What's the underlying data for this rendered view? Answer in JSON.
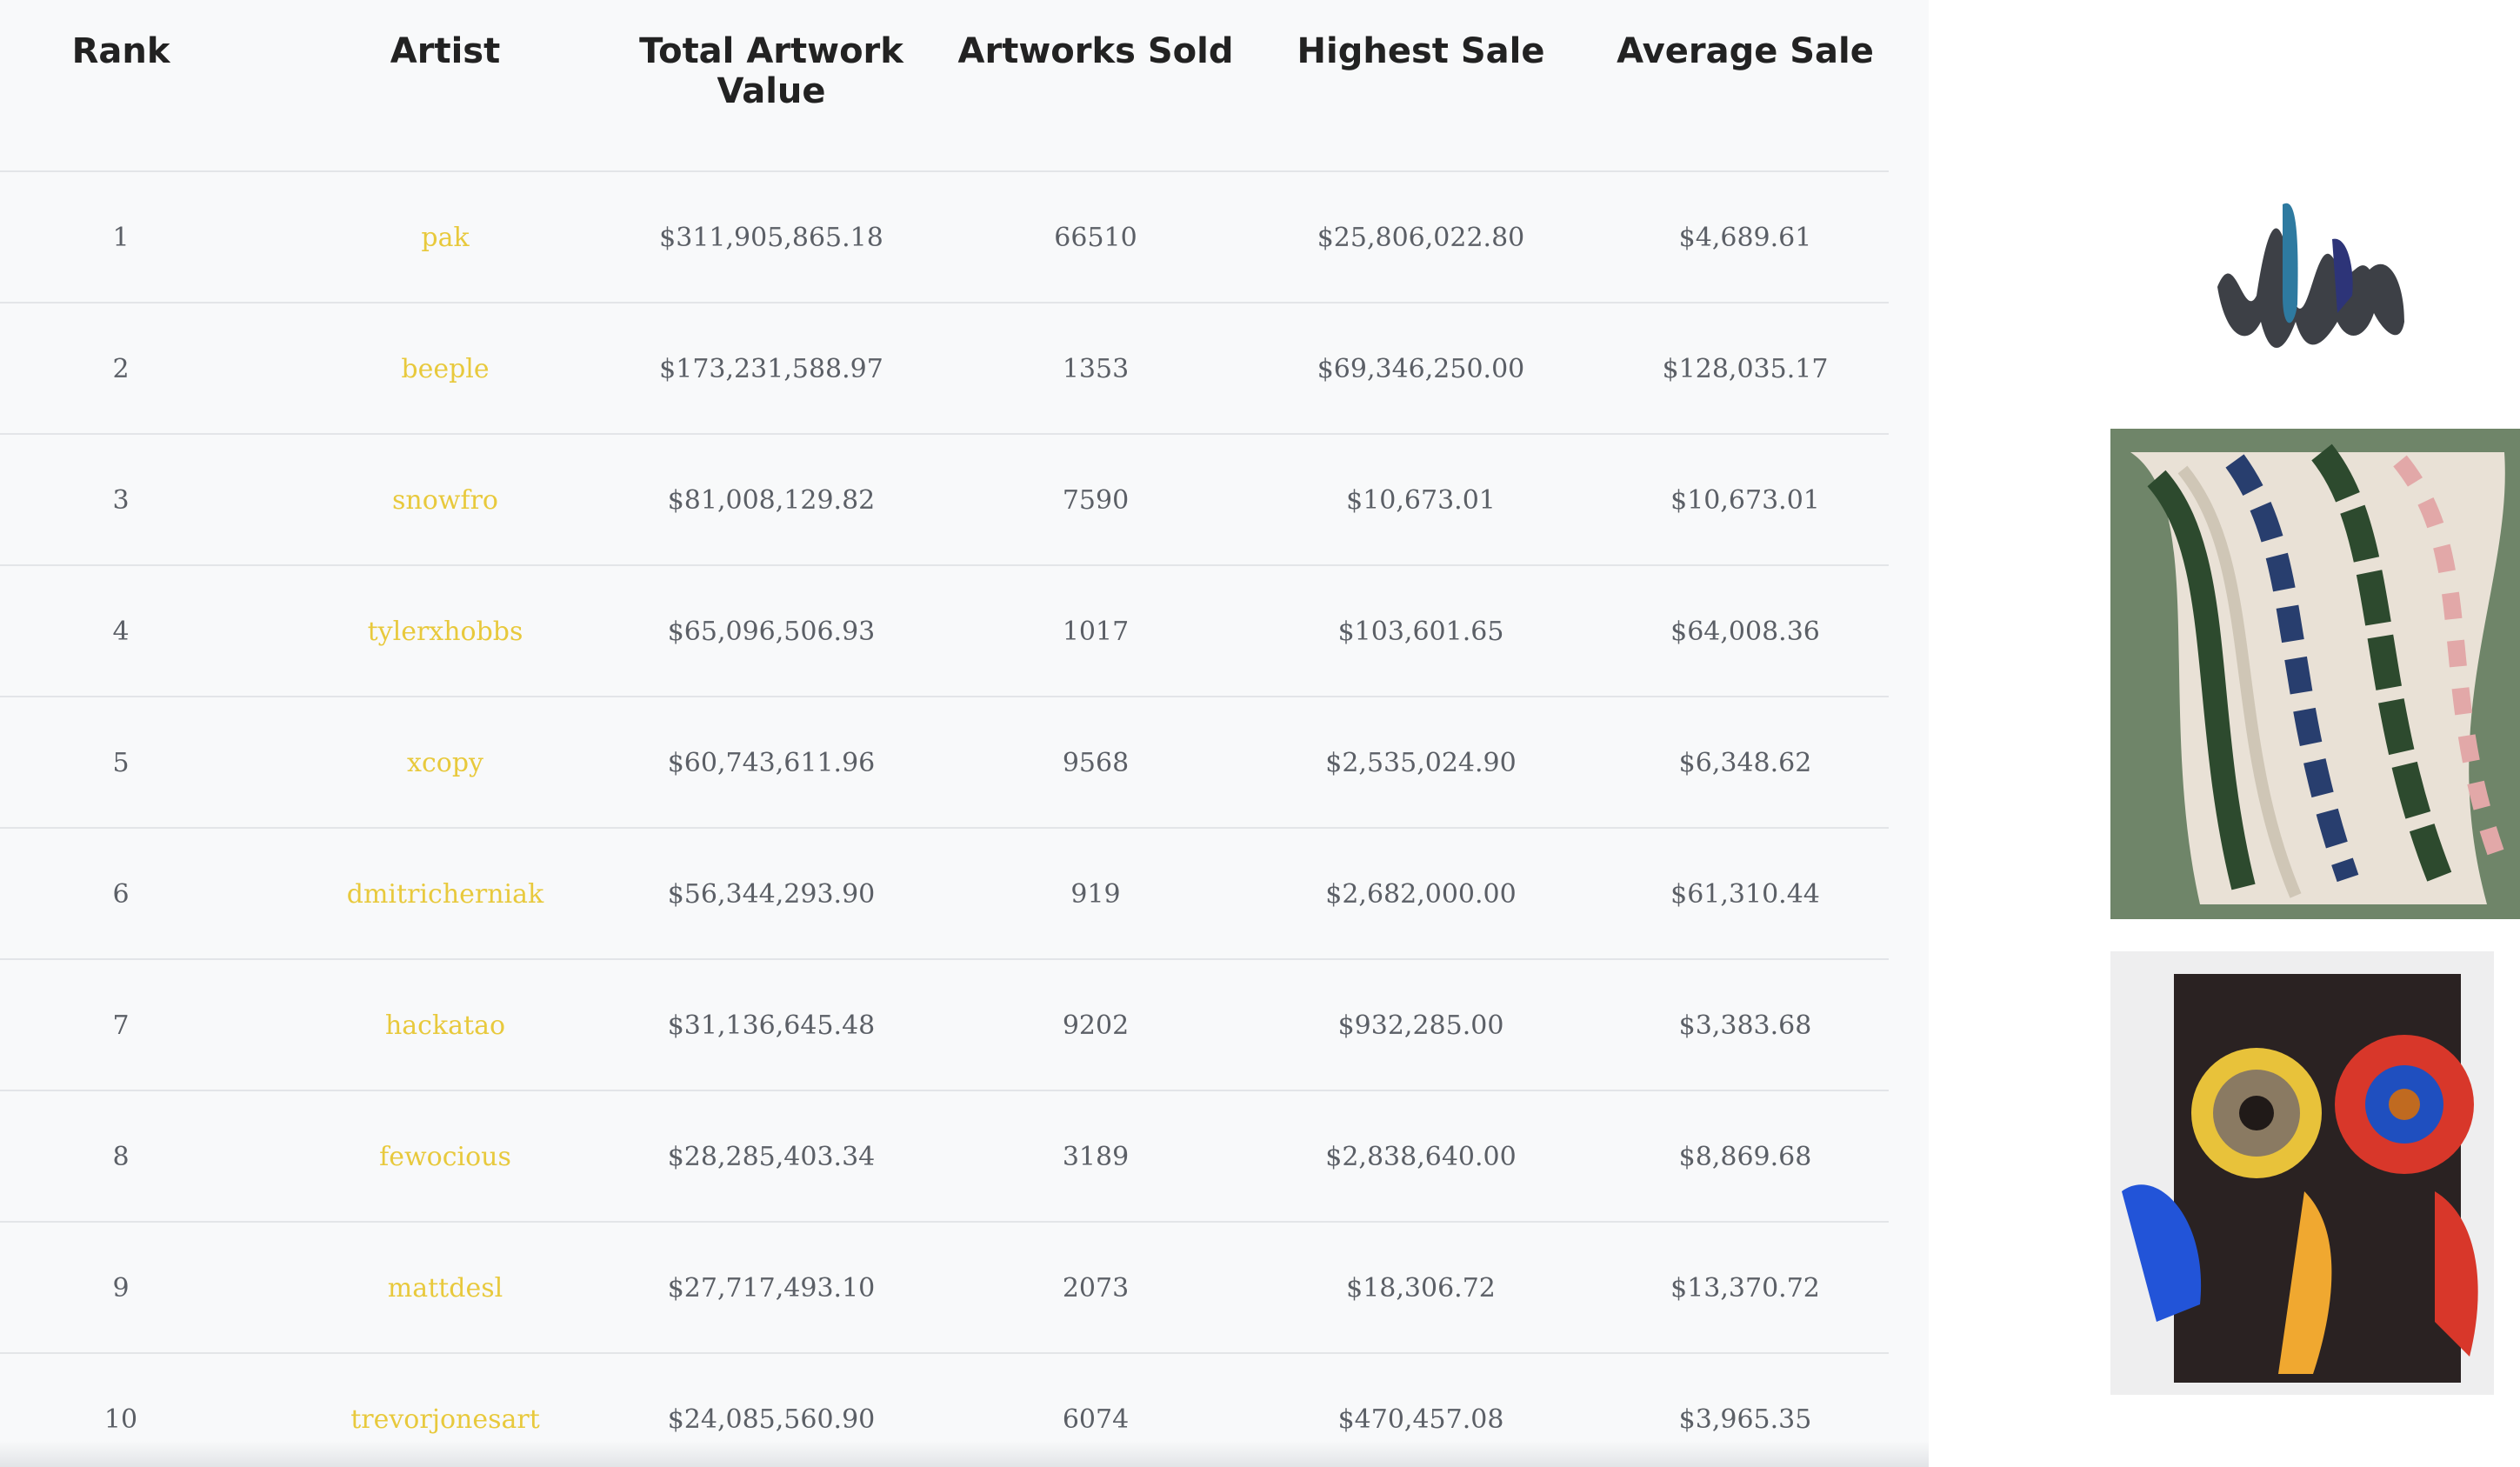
{
  "table": {
    "headers": [
      "Rank",
      "Artist",
      "Total Artwork Value",
      "Artworks Sold",
      "Highest Sale",
      "Average Sale"
    ],
    "rows": [
      [
        "1",
        "pak",
        "$311,905,865.18",
        "66510",
        "$25,806,022.80",
        "$4,689.61"
      ],
      [
        "2",
        "beeple",
        "$173,231,588.97",
        "1353",
        "$69,346,250.00",
        "$128,035.17"
      ],
      [
        "3",
        "snowfro",
        "$81,008,129.82",
        "7590",
        "$10,673.01",
        "$10,673.01"
      ],
      [
        "4",
        "tylerxhobbs",
        "$65,096,506.93",
        "1017",
        "$103,601.65",
        "$64,008.36"
      ],
      [
        "5",
        "xcopy",
        "$60,743,611.96",
        "9568",
        "$2,535,024.90",
        "$6,348.62"
      ],
      [
        "6",
        "dmitricherniak",
        "$56,344,293.90",
        "919",
        "$2,682,000.00",
        "$61,310.44"
      ],
      [
        "7",
        "hackatao",
        "$31,136,645.48",
        "9202",
        "$932,285.00",
        "$3,383.68"
      ],
      [
        "8",
        "fewocious",
        "$28,285,403.34",
        "3189",
        "$2,838,640.00",
        "$8,869.68"
      ],
      [
        "9",
        "mattdesl",
        "$27,717,493.10",
        "2073",
        "$18,306.72",
        "$13,370.72"
      ],
      [
        "10",
        "trevorjonesart",
        "$24,085,560.90",
        "6074",
        "$470,457.08",
        "$3,965.35"
      ]
    ]
  }
}
